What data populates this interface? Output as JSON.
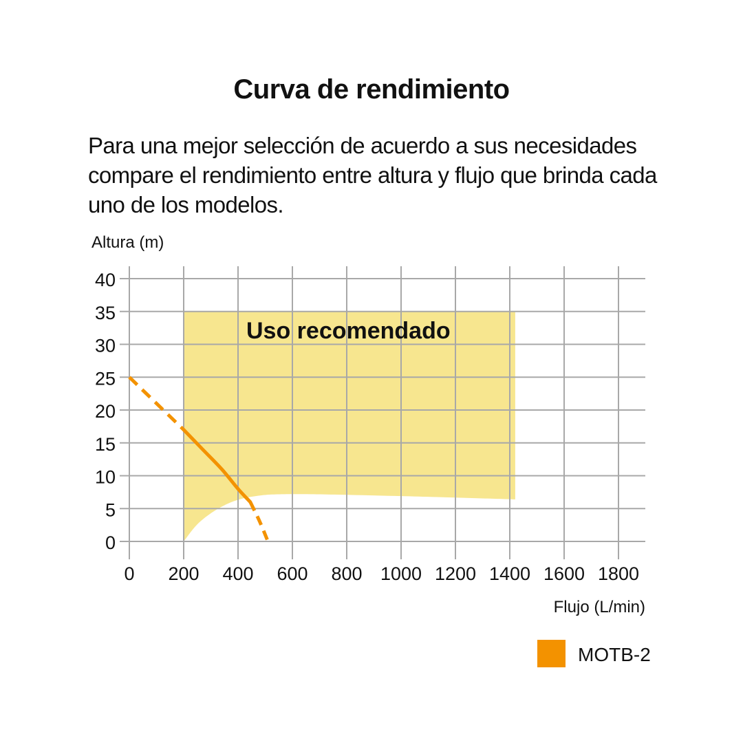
{
  "header": {
    "title": "Curva de rendimiento",
    "subtitle": "Para una mejor selección de acuerdo a sus necesidades compare el rendimiento entre altura y flujo que brinda cada uno de los modelos."
  },
  "colors": {
    "region": "#f7e68f",
    "curve": "#f39200",
    "grid": "#a8a8a8"
  },
  "chart_data": {
    "type": "line",
    "ylabel": "Altura (m)",
    "xlabel": "Flujo (L/min)",
    "xlim": [
      0,
      1900
    ],
    "ylim": [
      0,
      40
    ],
    "xticks": [
      0,
      200,
      400,
      600,
      800,
      1000,
      1200,
      1400,
      1600,
      1800
    ],
    "yticks": [
      0,
      5,
      10,
      15,
      20,
      25,
      30,
      35,
      40
    ],
    "grid": true,
    "legend_position": "bottom-right",
    "region": {
      "label": "Uso recomendado",
      "upper": [
        [
          200,
          35
        ],
        [
          1420,
          35
        ]
      ],
      "lower": [
        [
          200,
          0
        ],
        [
          260,
          3
        ],
        [
          350,
          5.5
        ],
        [
          450,
          6.8
        ],
        [
          600,
          7.2
        ],
        [
          1000,
          6.9
        ],
        [
          1420,
          6.4
        ]
      ]
    },
    "series": [
      {
        "name": "MOTB-2",
        "color": "#f39200",
        "dashed_start": [
          [
            0,
            25
          ],
          [
            100,
            21
          ],
          [
            200,
            17
          ]
        ],
        "solid": [
          [
            200,
            17
          ],
          [
            270,
            14
          ],
          [
            340,
            11
          ],
          [
            400,
            8
          ],
          [
            445,
            6
          ]
        ],
        "dashed_end": [
          [
            445,
            6
          ],
          [
            480,
            3
          ],
          [
            510,
            0
          ]
        ]
      }
    ]
  }
}
